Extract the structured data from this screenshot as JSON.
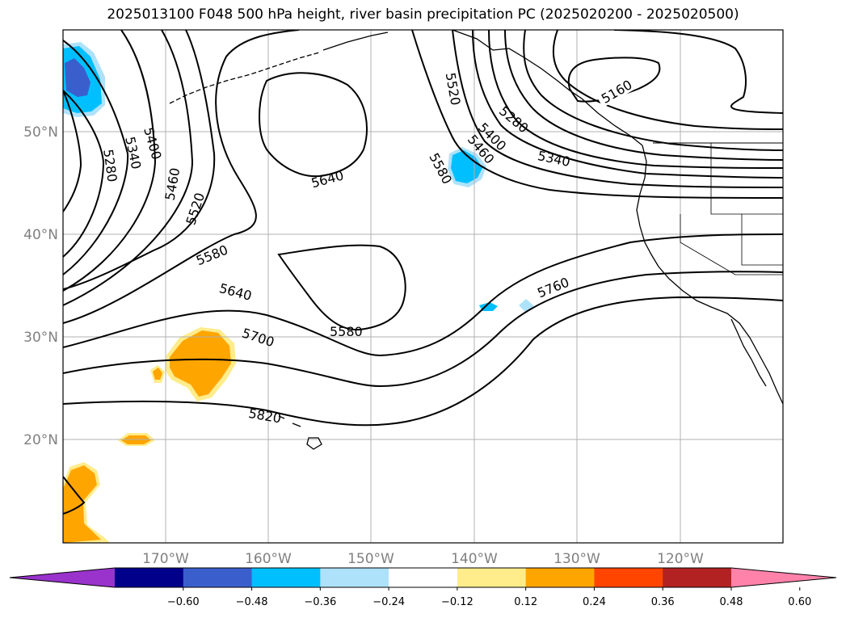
{
  "title": "2025013100 F048 500 hPa height, river basin precipitation PC (2025020200 - 2025020500)",
  "lat_labels": [
    "50°N",
    "40°N",
    "30°N",
    "20°N"
  ],
  "lon_labels": [
    "170°W",
    "160°W",
    "150°W",
    "140°W",
    "130°W",
    "120°W"
  ],
  "contour_labels": [
    "5160",
    "5280",
    "5340",
    "5400",
    "5460",
    "5520",
    "5580",
    "5640",
    "5700",
    "5760",
    "5820",
    "5280",
    "5340",
    "5400",
    "5460",
    "5520",
    "5580",
    "5640",
    "5580"
  ],
  "colorbar": {
    "tick_labels": [
      "−0.60",
      "−0.48",
      "−0.36",
      "−0.24",
      "−0.12",
      "0.12",
      "0.24",
      "0.36",
      "0.48",
      "0.60"
    ],
    "colors": [
      "#9933cc",
      "#00008b",
      "#3a5fcd",
      "#00bfff",
      "#aee2fa",
      "#ffffff",
      "#ffec8b",
      "#ffa500",
      "#ff4500",
      "#b22222",
      "#ff82ab"
    ]
  }
}
